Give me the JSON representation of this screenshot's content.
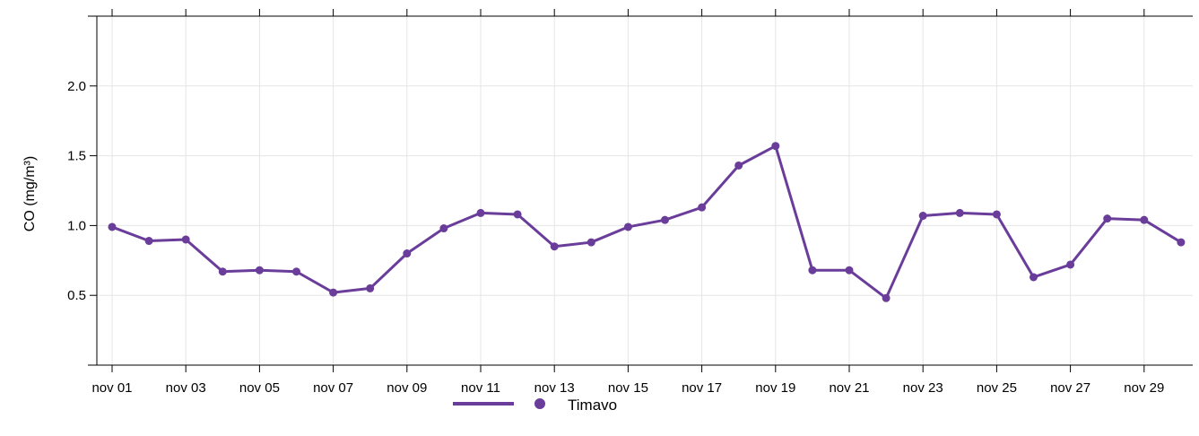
{
  "chart_data": {
    "type": "line",
    "ylabel": "CO (mg/m³)",
    "xlabel": "",
    "title": "",
    "ylim": [
      0,
      2.5
    ],
    "yticks": [
      0.5,
      1.0,
      1.5,
      2.0
    ],
    "ytick_labels": [
      "0.5",
      "1.0",
      "1.5",
      "2.0"
    ],
    "x": [
      "nov 01",
      "nov 02",
      "nov 03",
      "nov 04",
      "nov 05",
      "nov 06",
      "nov 07",
      "nov 08",
      "nov 09",
      "nov 10",
      "nov 11",
      "nov 12",
      "nov 13",
      "nov 14",
      "nov 15",
      "nov 16",
      "nov 17",
      "nov 18",
      "nov 19",
      "nov 20",
      "nov 21",
      "nov 22",
      "nov 23",
      "nov 24",
      "nov 25",
      "nov 26",
      "nov 27",
      "nov 28",
      "nov 29",
      "nov 30"
    ],
    "xtick_labels": [
      "nov 01",
      "nov 03",
      "nov 05",
      "nov 07",
      "nov 09",
      "nov 11",
      "nov 13",
      "nov 15",
      "nov 17",
      "nov 19",
      "nov 21",
      "nov 23",
      "nov 25",
      "nov 27",
      "nov 29"
    ],
    "series": [
      {
        "name": "Timavo",
        "color": "#6a3d9a",
        "values": [
          0.99,
          0.89,
          0.9,
          0.67,
          0.68,
          0.67,
          0.52,
          0.55,
          0.8,
          0.98,
          1.09,
          1.08,
          0.85,
          0.88,
          0.99,
          1.04,
          1.13,
          1.43,
          1.57,
          0.68,
          0.68,
          0.48,
          1.07,
          1.09,
          1.08,
          0.63,
          0.72,
          1.05,
          1.04,
          0.88
        ]
      }
    ],
    "grid": true,
    "legend_position": "bottom-center"
  }
}
